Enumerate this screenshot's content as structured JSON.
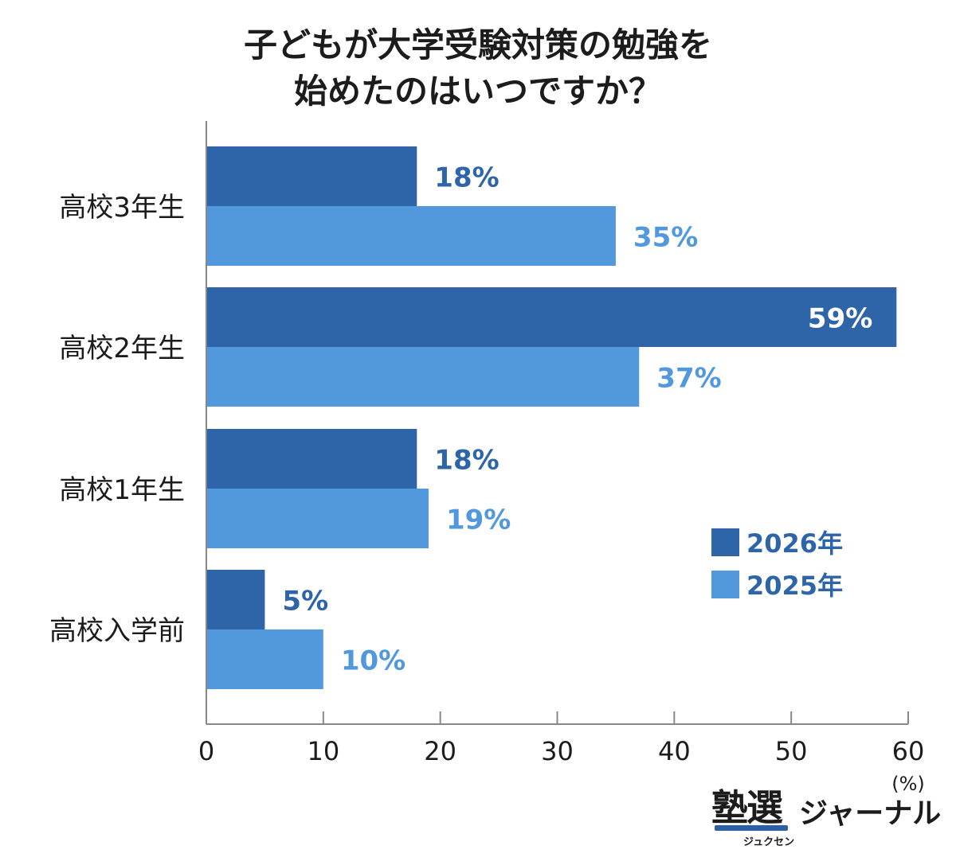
{
  "chart_data": {
    "type": "bar",
    "orientation": "horizontal",
    "title_lines": [
      "子どもが大学受験対策の勉強を",
      "始めたのはいつですか？"
    ],
    "categories": [
      "高校3年生",
      "高校2年生",
      "高校1年生",
      "高校入学前"
    ],
    "series": [
      {
        "name": "2026年",
        "color": "#2e64a8",
        "values": [
          18,
          59,
          18,
          5
        ],
        "labels": [
          "18%",
          "59%",
          "18%",
          "5%"
        ]
      },
      {
        "name": "2025年",
        "color": "#5199dc",
        "values": [
          35,
          37,
          19,
          10
        ],
        "labels": [
          "35%",
          "37%",
          "19%",
          "10%"
        ]
      }
    ],
    "xlim": [
      0,
      60
    ],
    "xticks": [
      "0",
      "10",
      "20",
      "30",
      "40",
      "50",
      "60"
    ],
    "xunit": "(%)",
    "grid": false,
    "legend_position": "right"
  },
  "logo": {
    "main": "塾選",
    "sub": "ジュクセン",
    "tail": "ジャーナル"
  }
}
